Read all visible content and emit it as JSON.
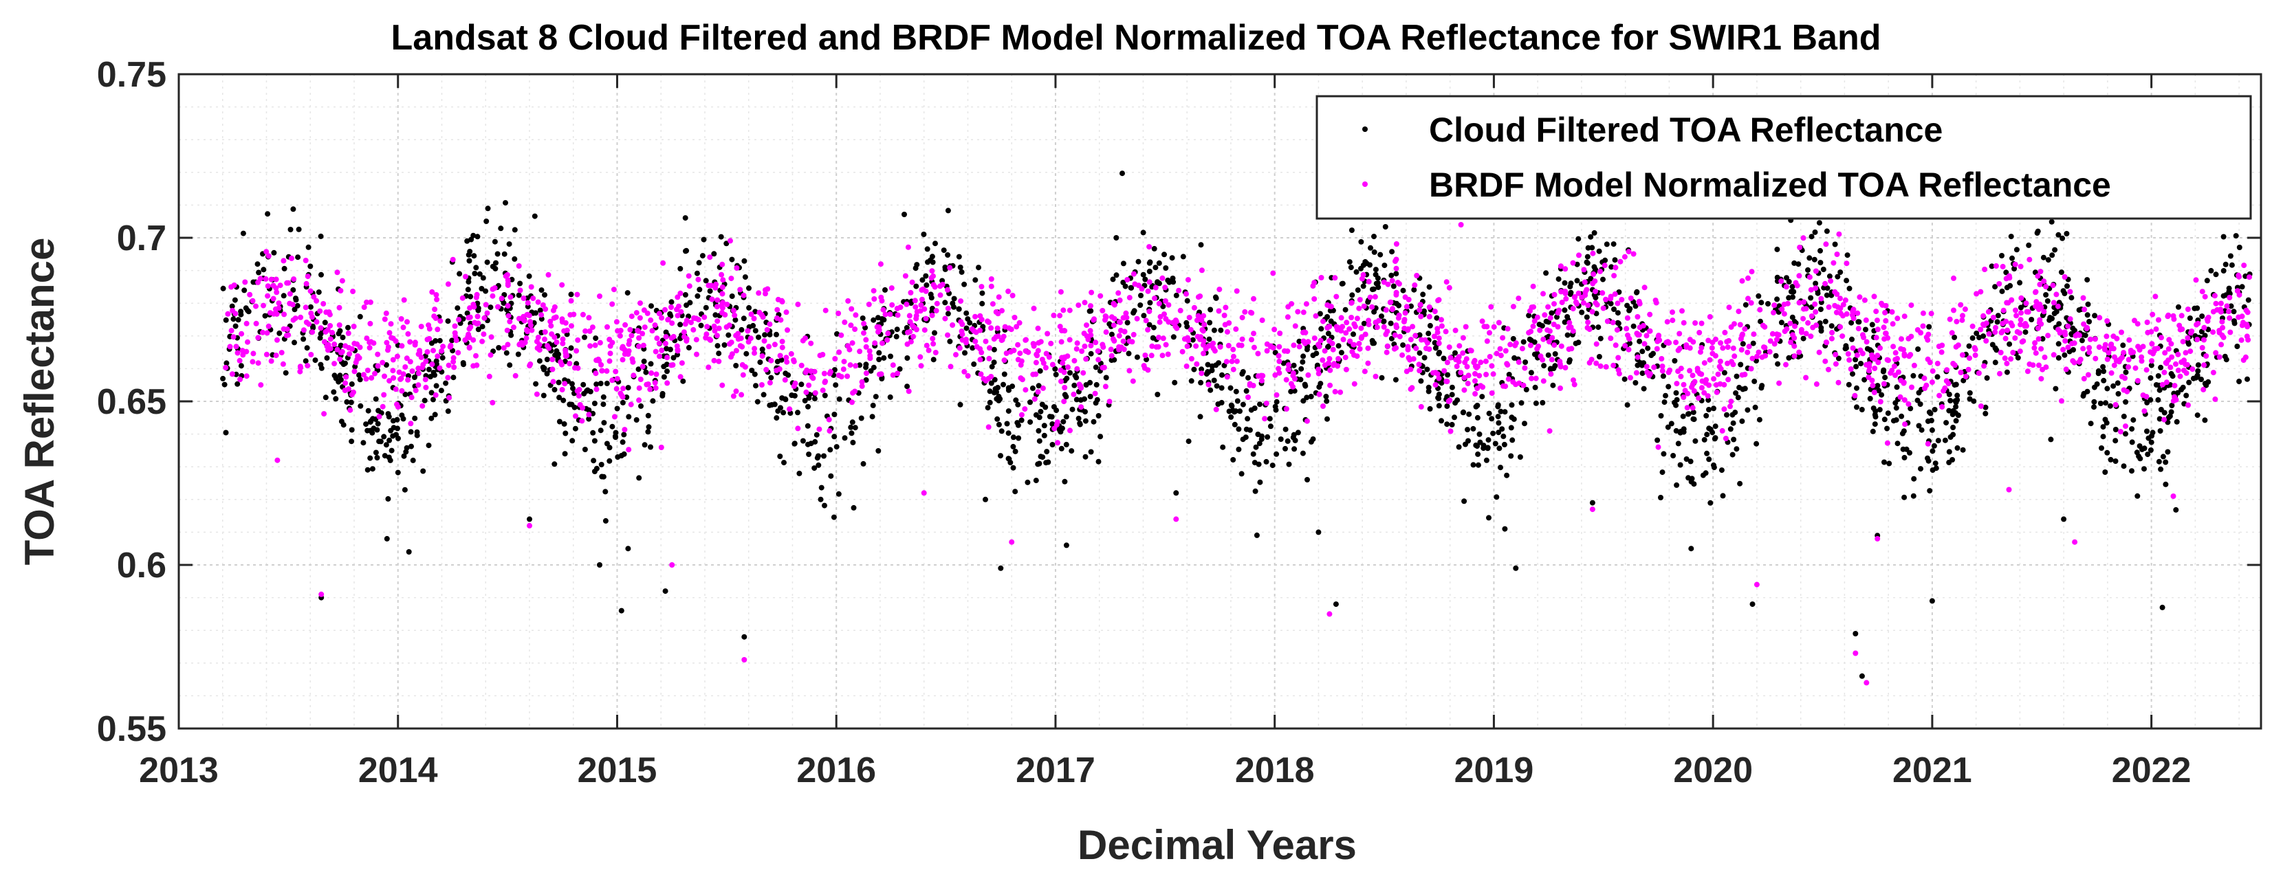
{
  "chart_data": {
    "type": "scatter",
    "title": "Landsat 8 Cloud Filtered and BRDF Model Normalized TOA Reflectance for SWIR1 Band",
    "xlabel": "Decimal Years",
    "ylabel": "TOA Reflectance",
    "xlim": [
      2013,
      2022.5
    ],
    "ylim": [
      0.55,
      0.75
    ],
    "xticks": [
      2013,
      2014,
      2015,
      2016,
      2017,
      2018,
      2019,
      2020,
      2021,
      2022
    ],
    "xtick_labels": [
      "2013",
      "2014",
      "2015",
      "2016",
      "2017",
      "2018",
      "2019",
      "2020",
      "2021",
      "2022"
    ],
    "yticks": [
      0.55,
      0.6,
      0.65,
      0.7,
      0.75
    ],
    "ytick_labels": [
      "0.55",
      "0.6",
      "0.65",
      "0.7",
      "0.75"
    ],
    "grid": true,
    "minor_grid": true,
    "legend_position": "top-right",
    "series": [
      {
        "name": "Cloud Filtered TOA Reflectance",
        "color": "#000000",
        "marker": "dot",
        "model": {
          "start": 2013.2,
          "end": 2022.45,
          "mean": 0.663,
          "amplitude": 0.022,
          "period": 1.0,
          "peak_phase": 0.45,
          "noise": 0.011,
          "points": 2200,
          "outliers_x": [
            2013.65,
            2013.95,
            2014.05,
            2014.6,
            2014.92,
            2015.02,
            2015.05,
            2015.22,
            2015.58,
            2016.68,
            2016.75,
            2017.05,
            2017.55,
            2018.2,
            2018.28,
            2019.05,
            2019.1,
            2019.45,
            2019.9,
            2020.18,
            2020.65,
            2020.68,
            2020.75,
            2021.0,
            2021.6,
            2022.05
          ],
          "outliers_y": [
            0.59,
            0.608,
            0.604,
            0.614,
            0.6,
            0.586,
            0.605,
            0.592,
            0.578,
            0.62,
            0.599,
            0.606,
            0.622,
            0.61,
            0.588,
            0.611,
            0.599,
            0.619,
            0.605,
            0.588,
            0.579,
            0.566,
            0.609,
            0.589,
            0.614,
            0.587
          ]
        }
      },
      {
        "name": "BRDF Model Normalized TOA Reflectance",
        "color": "#ff00ff",
        "marker": "dot",
        "model": {
          "start": 2013.2,
          "end": 2022.45,
          "mean": 0.669,
          "amplitude": 0.007,
          "period": 1.0,
          "peak_phase": 0.45,
          "noise": 0.009,
          "points": 2200,
          "outliers_x": [
            2013.65,
            2013.45,
            2014.6,
            2015.25,
            2015.58,
            2016.4,
            2016.8,
            2017.55,
            2018.25,
            2019.45,
            2019.75,
            2020.2,
            2020.65,
            2020.7,
            2020.75,
            2021.35,
            2021.65,
            2022.1,
            2018.85
          ],
          "outliers_y": [
            0.591,
            0.632,
            0.612,
            0.6,
            0.571,
            0.622,
            0.607,
            0.614,
            0.585,
            0.617,
            0.636,
            0.594,
            0.573,
            0.564,
            0.608,
            0.623,
            0.607,
            0.621,
            0.704
          ]
        }
      }
    ]
  }
}
